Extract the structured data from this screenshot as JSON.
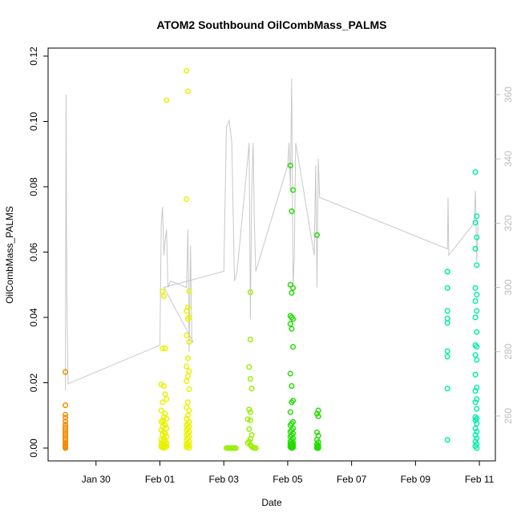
{
  "chart_data": {
    "type": "scatter",
    "title": "ATOM2 Southbound OilCombMass_PALMS",
    "xlabel": "Date",
    "ylabel": "OilCombMass_PALMS",
    "x_axis_type": "date",
    "xlim": [
      "2017-01-28T12:00",
      "2017-02-11T12:00"
    ],
    "ylim": [
      0,
      0.12
    ],
    "y_ticks": [
      0.0,
      0.02,
      0.04,
      0.06,
      0.08,
      0.1,
      0.12
    ],
    "y_tick_labels": [
      "0.00",
      "0.02",
      "0.04",
      "0.06",
      "0.08",
      "0.10",
      "0.12"
    ],
    "x_ticks": [
      "2017-01-30",
      "2017-02-01",
      "2017-02-03",
      "2017-02-05",
      "2017-02-07",
      "2017-02-09",
      "2017-02-11"
    ],
    "x_tick_labels": [
      "Jan 30",
      "Feb 01",
      "Feb 03",
      "Feb 05",
      "Feb 07",
      "Feb 09",
      "Feb 11"
    ],
    "secondary_axis": {
      "side": "right",
      "color": "#bdbdbd",
      "ylim": [
        250,
        372
      ],
      "ticks": [
        260,
        280,
        300,
        320,
        340,
        360
      ],
      "tick_labels": [
        "260",
        "280",
        "300",
        "320",
        "340",
        "360"
      ]
    },
    "grid": false,
    "legend": "none",
    "series": [
      {
        "color": "#f28c00",
        "x": [
          "2017-01-29T01:00",
          "2017-01-29T01:00",
          "2017-01-29T01:00",
          "2017-01-29T01:00",
          "2017-01-29T01:00",
          "2017-01-29T01:00",
          "2017-01-29T01:00",
          "2017-01-29T01:00",
          "2017-01-29T01:00",
          "2017-01-29T01:00",
          "2017-01-29T01:00",
          "2017-01-29T01:00",
          "2017-01-29T01:00",
          "2017-01-29T01:00",
          "2017-01-29T01:00",
          "2017-01-29T01:00",
          "2017-01-29T01:00",
          "2017-01-29T01:00",
          "2017-01-29T01:00",
          "2017-01-29T01:00"
        ],
        "y": [
          0.0233,
          0.0131,
          0.0102,
          0.0093,
          0.0082,
          0.0072,
          0.0064,
          0.0058,
          0.0052,
          0.0046,
          0.004,
          0.0034,
          0.0028,
          0.0022,
          0.0016,
          0.0012,
          0.0008,
          0.0005,
          0.0002,
          0.0
        ]
      },
      {
        "color": "#e8f200",
        "x": [
          "2017-02-01T02:00",
          "2017-02-01T03:00",
          "2017-02-01T05:00",
          "2017-02-01T02:00",
          "2017-02-01T04:00",
          "2017-02-01T01:00",
          "2017-02-01T03:00",
          "2017-02-01T04:00",
          "2017-02-01T05:00",
          "2017-02-01T02:00",
          "2017-02-01T01:00",
          "2017-02-01T04:00",
          "2017-02-01T03:00",
          "2017-02-01T05:00",
          "2017-02-01T02:00",
          "2017-02-01T01:00",
          "2017-02-01T03:00",
          "2017-02-01T04:00",
          "2017-02-01T02:00",
          "2017-02-01T05:00",
          "2017-02-01T01:00",
          "2017-02-01T03:00",
          "2017-02-01T04:00",
          "2017-02-01T02:00",
          "2017-02-01T05:00",
          "2017-02-01T03:00",
          "2017-02-01T01:00",
          "2017-02-01T04:00",
          "2017-02-01T02:00",
          "2017-02-01T03:00",
          "2017-02-01T05:00",
          "2017-02-01T01:00",
          "2017-02-01T04:00",
          "2017-02-01T02:00",
          "2017-02-01T03:00",
          "2017-02-01T05:00",
          "2017-02-01T01:00",
          "2017-02-01T04:00",
          "2017-02-01T02:00",
          "2017-02-01T03:00",
          "2017-02-01T20:00",
          "2017-02-01T21:00",
          "2017-02-01T20:00",
          "2017-02-01T22:00",
          "2017-02-01T21:00",
          "2017-02-01T20:00",
          "2017-02-01T22:00",
          "2017-02-01T21:00",
          "2017-02-01T20:00",
          "2017-02-01T22:00",
          "2017-02-01T21:00",
          "2017-02-01T20:00",
          "2017-02-01T22:00",
          "2017-02-01T21:00",
          "2017-02-01T20:00",
          "2017-02-01T22:00",
          "2017-02-01T21:00",
          "2017-02-01T20:00",
          "2017-02-01T22:00",
          "2017-02-01T21:00",
          "2017-02-01T20:00",
          "2017-02-01T22:00",
          "2017-02-01T21:00",
          "2017-02-01T20:00",
          "2017-02-01T22:00",
          "2017-02-01T21:00",
          "2017-02-01T20:00",
          "2017-02-01T22:00",
          "2017-02-01T21:00",
          "2017-02-01T20:00",
          "2017-02-01T22:00",
          "2017-02-01T21:00",
          "2017-02-01T20:00",
          "2017-02-01T22:00",
          "2017-02-01T21:00",
          "2017-02-01T20:00",
          "2017-02-01T22:00",
          "2017-02-01T21:00",
          "2017-02-01T20:00",
          "2017-02-01T22:00"
        ],
        "y": [
          0.048,
          0.0465,
          0.1065,
          0.0305,
          0.0305,
          0.0195,
          0.019,
          0.0165,
          0.015,
          0.014,
          0.0115,
          0.0105,
          0.0095,
          0.009,
          0.0085,
          0.008,
          0.0075,
          0.007,
          0.0065,
          0.006,
          0.0055,
          0.005,
          0.0045,
          0.004,
          0.0035,
          0.003,
          0.0025,
          0.0022,
          0.002,
          0.0018,
          0.0015,
          0.0012,
          0.001,
          0.0008,
          0.0006,
          0.0005,
          0.0004,
          0.0003,
          0.0002,
          0.0,
          0.1155,
          0.1092,
          0.0762,
          0.048,
          0.043,
          0.042,
          0.04,
          0.0395,
          0.0345,
          0.0325,
          0.0275,
          0.025,
          0.0235,
          0.022,
          0.0205,
          0.018,
          0.014,
          0.0125,
          0.0115,
          0.01,
          0.009,
          0.008,
          0.0075,
          0.007,
          0.0065,
          0.006,
          0.0055,
          0.005,
          0.0045,
          0.004,
          0.0035,
          0.003,
          0.0025,
          0.002,
          0.0015,
          0.0012,
          0.0008,
          0.0005,
          0.0003,
          0.0
        ]
      },
      {
        "color": "#99ee00",
        "x": [
          "2017-02-03T02:00",
          "2017-02-03T03:00",
          "2017-02-03T04:00",
          "2017-02-03T05:00",
          "2017-02-03T06:00",
          "2017-02-03T07:00",
          "2017-02-03T08:00",
          "2017-02-03T09:00",
          "2017-02-03T20:00",
          "2017-02-03T20:00",
          "2017-02-03T19:00",
          "2017-02-03T20:00",
          "2017-02-03T21:00",
          "2017-02-03T19:00",
          "2017-02-03T20:00",
          "2017-02-03T18:00",
          "2017-02-03T20:00",
          "2017-02-03T19:00",
          "2017-02-03T21:00",
          "2017-02-03T20:00",
          "2017-02-03T19:00",
          "2017-02-03T18:00",
          "2017-02-03T20:00",
          "2017-02-03T21:00",
          "2017-02-03T22:00",
          "2017-02-03T23:00",
          "2017-02-04T00:00"
        ],
        "y": [
          0.0,
          0.0,
          0.0,
          0.0,
          0.0,
          0.0,
          0.0,
          0.0,
          0.0477,
          0.0332,
          0.0248,
          0.0212,
          0.0182,
          0.0118,
          0.011,
          0.0088,
          0.0085,
          0.0058,
          0.004,
          0.0028,
          0.002,
          0.0015,
          0.001,
          0.0005,
          0.0002,
          0.0,
          0.0
        ]
      },
      {
        "color": "#22dd00",
        "x": [
          "2017-02-05T02:00",
          "2017-02-05T04:00",
          "2017-02-05T03:00",
          "2017-02-05T02:00",
          "2017-02-05T04:00",
          "2017-02-05T03:00",
          "2017-02-05T02:00",
          "2017-02-05T03:00",
          "2017-02-05T04:00",
          "2017-02-05T02:00",
          "2017-02-05T03:00",
          "2017-02-05T04:00",
          "2017-02-05T02:00",
          "2017-02-05T03:00",
          "2017-02-05T04:00",
          "2017-02-05T03:00",
          "2017-02-05T02:00",
          "2017-02-05T04:00",
          "2017-02-05T03:00",
          "2017-02-05T02:00",
          "2017-02-05T04:00",
          "2017-02-05T03:00",
          "2017-02-05T02:00",
          "2017-02-05T04:00",
          "2017-02-05T03:00",
          "2017-02-05T02:00",
          "2017-02-05T04:00",
          "2017-02-05T03:00",
          "2017-02-05T02:00",
          "2017-02-05T04:00",
          "2017-02-05T03:00",
          "2017-02-05T02:00",
          "2017-02-05T04:00",
          "2017-02-05T03:00",
          "2017-02-05T02:00",
          "2017-02-05T04:00",
          "2017-02-05T03:00",
          "2017-02-05T02:00",
          "2017-02-05T04:00",
          "2017-02-05T03:00",
          "2017-02-05T22:00",
          "2017-02-05T23:00",
          "2017-02-05T22:00",
          "2017-02-05T23:00",
          "2017-02-05T22:00",
          "2017-02-05T23:00",
          "2017-02-05T22:00",
          "2017-02-05T23:00",
          "2017-02-05T22:00",
          "2017-02-05T23:00",
          "2017-02-05T22:00",
          "2017-02-05T23:00",
          "2017-02-05T22:00",
          "2017-02-05T23:00",
          "2017-02-05T22:00",
          "2017-02-05T23:00"
        ],
        "y": [
          0.0865,
          0.079,
          0.0725,
          0.05,
          0.049,
          0.0475,
          0.0405,
          0.04,
          0.0395,
          0.038,
          0.0365,
          0.031,
          0.0228,
          0.019,
          0.0145,
          0.014,
          0.011,
          0.008,
          0.0075,
          0.007,
          0.006,
          0.0055,
          0.005,
          0.0045,
          0.004,
          0.0035,
          0.003,
          0.0025,
          0.002,
          0.0018,
          0.0015,
          0.0012,
          0.001,
          0.0008,
          0.0006,
          0.0005,
          0.0004,
          0.0003,
          0.0002,
          0.0,
          0.0652,
          0.0115,
          0.0105,
          0.0097,
          0.0048,
          0.0038,
          0.0025,
          0.0018,
          0.0012,
          0.0008,
          0.0005,
          0.0003,
          0.0002,
          0.0001,
          0.0,
          0.0
        ]
      },
      {
        "color": "#00eeaa",
        "x": [
          "2017-02-10T00:00",
          "2017-02-10T00:00",
          "2017-02-10T00:00",
          "2017-02-10T00:00",
          "2017-02-10T00:00",
          "2017-02-10T00:00",
          "2017-02-10T00:00",
          "2017-02-10T00:00",
          "2017-02-10T00:00",
          "2017-02-10T00:00",
          "2017-02-10T21:00",
          "2017-02-10T22:00",
          "2017-02-10T21:00",
          "2017-02-10T22:00",
          "2017-02-10T21:00",
          "2017-02-10T22:00",
          "2017-02-10T21:00",
          "2017-02-10T22:00",
          "2017-02-10T21:00",
          "2017-02-10T22:00",
          "2017-02-10T21:00",
          "2017-02-10T22:00",
          "2017-02-10T21:00",
          "2017-02-10T22:00",
          "2017-02-10T21:00",
          "2017-02-10T22:00",
          "2017-02-10T21:00",
          "2017-02-10T22:00",
          "2017-02-10T21:00",
          "2017-02-10T22:00",
          "2017-02-10T21:00",
          "2017-02-10T22:00",
          "2017-02-10T21:00",
          "2017-02-10T22:00",
          "2017-02-10T21:00",
          "2017-02-10T22:00",
          "2017-02-10T21:00",
          "2017-02-10T22:00",
          "2017-02-10T21:00",
          "2017-02-10T22:00",
          "2017-02-10T21:00",
          "2017-02-10T22:00",
          "2017-02-10T21:00",
          "2017-02-10T22:00"
        ],
        "y": [
          0.054,
          0.049,
          0.042,
          0.0397,
          0.0383,
          0.0297,
          0.028,
          0.0182,
          0.0025,
          0.054,
          0.0845,
          0.071,
          0.069,
          0.0645,
          0.061,
          0.056,
          0.049,
          0.047,
          0.045,
          0.042,
          0.04,
          0.0355,
          0.0315,
          0.031,
          0.0285,
          0.027,
          0.0225,
          0.0185,
          0.0175,
          0.015,
          0.014,
          0.012,
          0.0095,
          0.009,
          0.0085,
          0.0075,
          0.006,
          0.005,
          0.004,
          0.003,
          0.002,
          0.0012,
          0.0006,
          0.0
        ]
      }
    ],
    "overlay_line": {
      "color": "#c8c8c8",
      "axis": "right",
      "x": [
        "2017-01-29T01:00",
        "2017-01-29T01:30",
        "2017-01-29T02:00",
        "2017-01-29T03:00",
        "2017-02-01T00:00",
        "2017-02-01T01:00",
        "2017-02-01T02:00",
        "2017-02-01T03:00",
        "2017-02-01T04:00",
        "2017-02-01T05:00",
        "2017-02-01T06:00",
        "2017-02-01T08:00",
        "2017-02-01T20:00",
        "2017-02-01T21:00",
        "2017-02-01T22:00",
        "2017-02-01T23:00",
        "2017-02-02T00:00",
        "2017-02-02T01:00",
        "2017-02-01T03:00",
        "2017-02-03T00:00",
        "2017-02-03T02:00",
        "2017-02-03T04:00",
        "2017-02-03T06:00",
        "2017-02-03T08:00",
        "2017-02-03T10:00",
        "2017-02-03T18:00",
        "2017-02-03T19:00",
        "2017-02-03T20:00",
        "2017-02-03T21:00",
        "2017-02-03T22:00",
        "2017-02-03T23:00",
        "2017-02-04T00:00",
        "2017-02-05T00:00",
        "2017-02-05T01:00",
        "2017-02-05T02:00",
        "2017-02-05T03:00",
        "2017-02-05T04:00",
        "2017-02-05T05:00",
        "2017-02-05T06:00",
        "2017-02-05T20:00",
        "2017-02-05T21:00",
        "2017-02-05T22:00",
        "2017-02-05T23:00",
        "2017-02-06T00:00",
        "2017-02-10T00:00",
        "2017-02-10T00:30",
        "2017-02-10T01:00",
        "2017-02-10T20:00",
        "2017-02-10T21:00",
        "2017-02-10T22:00",
        "2017-02-10T23:00"
      ],
      "y": [
        268,
        360,
        300,
        270,
        282,
        320,
        325,
        310,
        315,
        318,
        300,
        302,
        300,
        318,
        280,
        313,
        283,
        283,
        300,
        305,
        350,
        352,
        345,
        302,
        305,
        340,
        345,
        290,
        330,
        345,
        320,
        305,
        338,
        345,
        330,
        365,
        300,
        310,
        345,
        310,
        338,
        300,
        340,
        328,
        312,
        328,
        310,
        320,
        330,
        308,
        320
      ]
    }
  }
}
